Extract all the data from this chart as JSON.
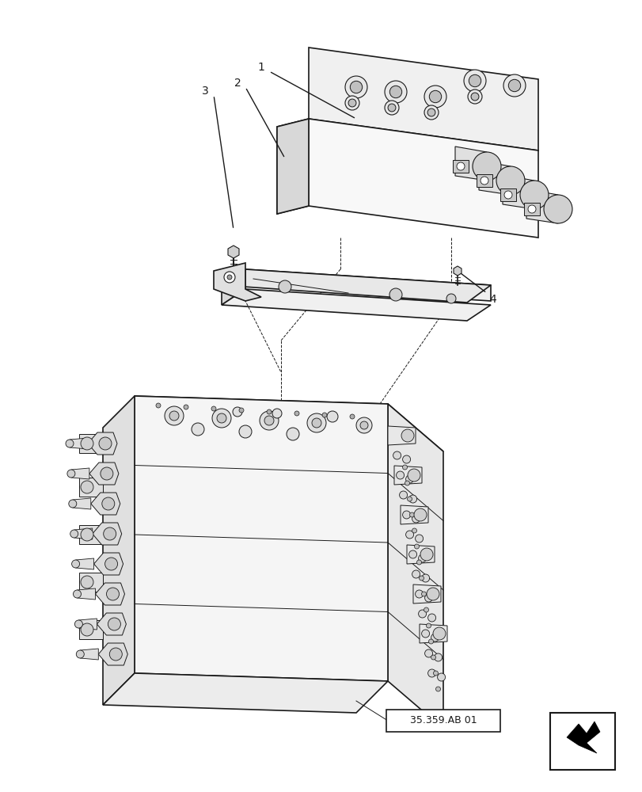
{
  "background_color": "#ffffff",
  "line_color": "#1a1a1a",
  "light_gray": "#d0d0d0",
  "mid_gray": "#a0a0a0",
  "dark_gray": "#555555",
  "callout_labels": [
    "1",
    "2",
    "3",
    "4"
  ],
  "reference_label": "35.359.AB 01",
  "title": "",
  "figsize": [
    8.12,
    10.0
  ],
  "dpi": 100
}
